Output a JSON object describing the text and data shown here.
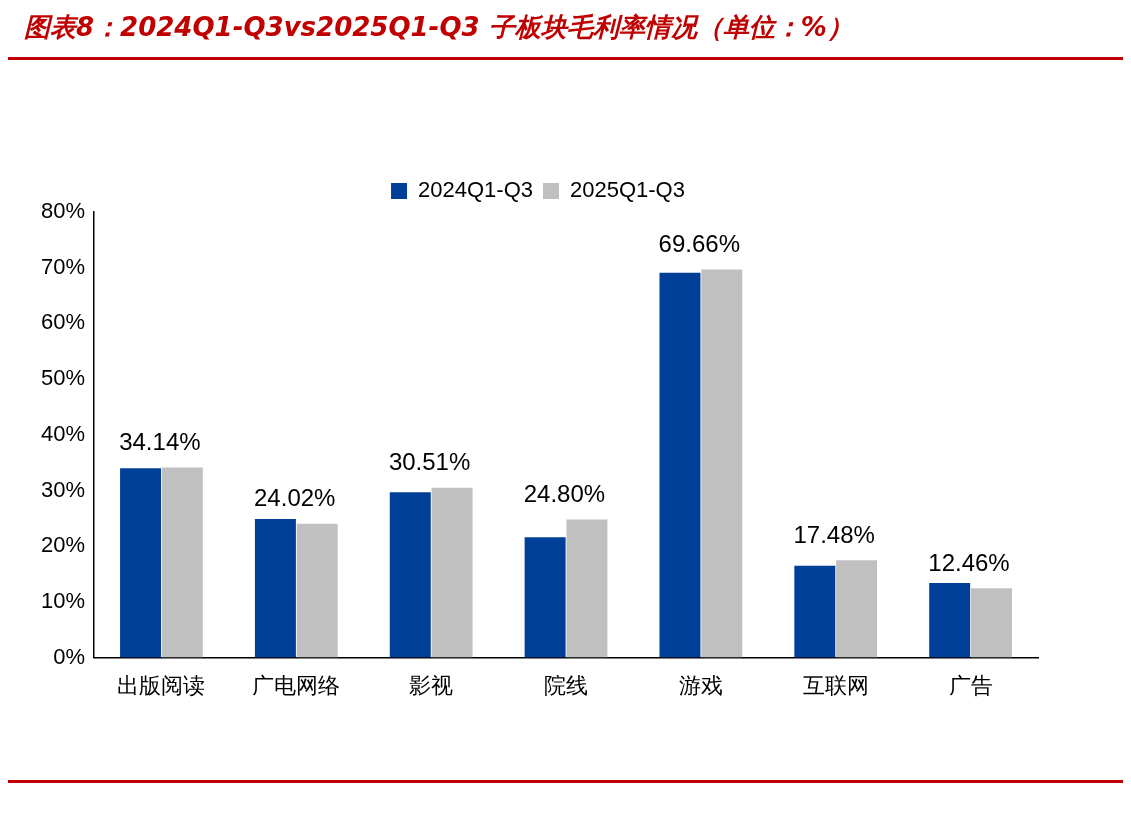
{
  "chart_data": {
    "type": "bar",
    "title": "图表8：2024Q1-Q3vs2025Q1-Q3 子板块毛利率情况（单位：%）",
    "categories": [
      "出版阅读",
      "广电网络",
      "影视",
      "院线",
      "游戏",
      "互联网",
      "广告"
    ],
    "series": [
      {
        "name": "2024Q1-Q3",
        "color": "#003f98",
        "values": [
          34.0,
          24.9,
          29.7,
          21.6,
          69.1,
          16.5,
          13.4
        ]
      },
      {
        "name": "2025Q1-Q3",
        "color": "#c0c0c0",
        "values": [
          34.14,
          24.02,
          30.51,
          24.8,
          69.66,
          17.48,
          12.46
        ],
        "value_labels": [
          "34.14%",
          "24.02%",
          "30.51%",
          "24.80%",
          "69.66%",
          "17.48%",
          "12.46%"
        ]
      }
    ],
    "ylim": [
      0,
      80
    ],
    "yticks": [
      {
        "value": 0,
        "label": "0%"
      },
      {
        "value": 10,
        "label": "10%"
      },
      {
        "value": 20,
        "label": "20%"
      },
      {
        "value": 30,
        "label": "30%"
      },
      {
        "value": 40,
        "label": "40%"
      },
      {
        "value": 50,
        "label": "50%"
      },
      {
        "value": 60,
        "label": "60%"
      },
      {
        "value": 70,
        "label": "70%"
      },
      {
        "value": 80,
        "label": "80%"
      }
    ],
    "grid": false,
    "legend": "top"
  }
}
